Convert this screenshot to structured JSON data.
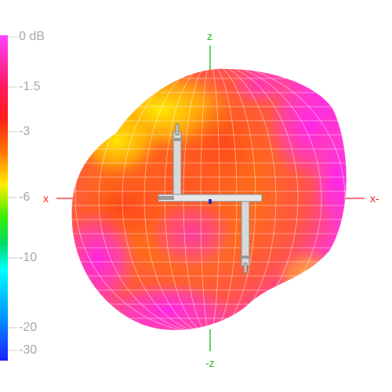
{
  "colorbar": {
    "ticks": [
      {
        "label": "0 dB",
        "value": 0
      },
      {
        "label": "-1.5",
        "value": -1.5
      },
      {
        "label": "-3",
        "value": -3
      },
      {
        "label": "-6",
        "value": -6
      },
      {
        "label": "-10",
        "value": -10
      },
      {
        "label": "-20",
        "value": -20
      },
      {
        "label": "-30",
        "value": -30
      }
    ],
    "colors": [
      "#ff33ff",
      "#ff1a1a",
      "#ffee00",
      "#22dd22",
      "#00ffff",
      "#1a33ff"
    ]
  },
  "axes": {
    "z_pos": "z",
    "z_neg": "-z",
    "x_pos": "x",
    "x_neg": "x-",
    "x_color": "#ff2222",
    "z_color": "#22bb22"
  },
  "pattern": {
    "lobe_colors": [
      "#ff33cc",
      "#ff4422",
      "#ff8822",
      "#ffdd00"
    ]
  }
}
